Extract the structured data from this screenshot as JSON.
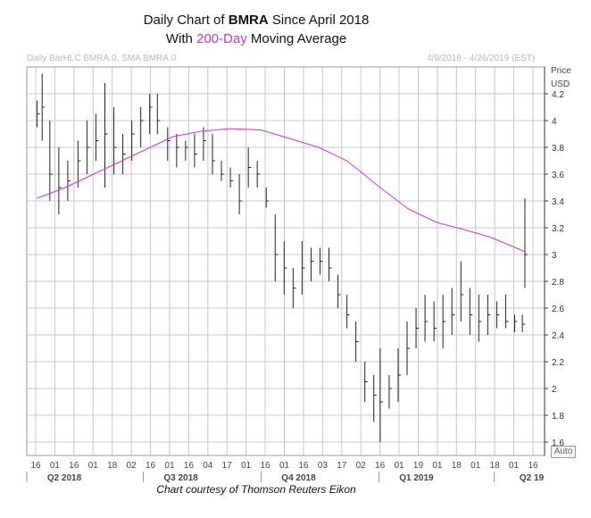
{
  "title": {
    "line1_prefix": "Daily Chart of ",
    "ticker": "BMRA",
    "line1_suffix": " Since April 2018",
    "line2_prefix": "With ",
    "line2_highlight": "200-Day",
    "line2_suffix": " Moving Average"
  },
  "header": {
    "left": "Daily BarHLC BMRA.0, SMA BMRA.0",
    "right": "4/9/2018 - 4/26/2019 (EST)"
  },
  "axis": {
    "price_label": "Price",
    "currency_label": "USD"
  },
  "credit": "Chart courtesy of Thomson Reuters Eikon",
  "auto_button": "Auto",
  "colors": {
    "bars": "#222222",
    "sma": "#cc33cc",
    "grid": "#c8c8c8"
  },
  "chart_data": {
    "type": "bar",
    "subtype": "HLC daily bars with 200-day simple moving average",
    "ylim": [
      1.5,
      4.4
    ],
    "grid": true,
    "yticks": [
      1.6,
      1.8,
      2,
      2.2,
      2.4,
      2.6,
      2.8,
      3,
      3.2,
      3.4,
      3.6,
      3.8,
      4,
      4.2
    ],
    "xticks": [
      "16",
      "01",
      "16",
      "01",
      "18",
      "02",
      "16",
      "01",
      "16",
      "04",
      "17",
      "01",
      "16",
      "01",
      "16",
      "03",
      "17",
      "02",
      "16",
      "01",
      "19",
      "01",
      "18",
      "01",
      "18",
      "01",
      "16"
    ],
    "quarters": [
      "Q2 2018",
      "Q3 2018",
      "Q4 2018",
      "Q1 2019",
      "Q2 19"
    ],
    "series": [
      {
        "kind": "sma",
        "points": [
          [
            "2018-04-09",
            3.42
          ],
          [
            "2018-05-01",
            3.5
          ],
          [
            "2018-06-01",
            3.64
          ],
          [
            "2018-07-02",
            3.78
          ],
          [
            "2018-07-24",
            3.88
          ],
          [
            "2018-08-15",
            3.92
          ],
          [
            "2018-09-07",
            3.94
          ],
          [
            "2018-10-01",
            3.93
          ],
          [
            "2018-10-22",
            3.87
          ],
          [
            "2018-11-15",
            3.8
          ],
          [
            "2018-12-07",
            3.7
          ],
          [
            "2019-01-02",
            3.5
          ],
          [
            "2019-01-24",
            3.34
          ],
          [
            "2019-02-15",
            3.24
          ],
          [
            "2019-03-07",
            3.19
          ],
          [
            "2019-03-29",
            3.13
          ],
          [
            "2019-04-18",
            3.05
          ],
          [
            "2019-04-25",
            3.02
          ]
        ]
      },
      {
        "kind": "hlc",
        "points": [
          [
            "2018-04-09",
            4.15,
            3.95,
            4.05
          ],
          [
            "2018-04-13",
            4.35,
            3.85,
            4.1
          ],
          [
            "2018-04-19",
            4.0,
            3.4,
            3.6
          ],
          [
            "2018-04-26",
            3.8,
            3.3,
            3.5
          ],
          [
            "2018-05-03",
            3.7,
            3.4,
            3.55
          ],
          [
            "2018-05-11",
            3.85,
            3.5,
            3.7
          ],
          [
            "2018-05-18",
            4.0,
            3.6,
            3.8
          ],
          [
            "2018-05-25",
            4.05,
            3.7,
            3.85
          ],
          [
            "2018-06-01",
            4.28,
            3.5,
            3.9
          ],
          [
            "2018-06-08",
            4.1,
            3.6,
            3.8
          ],
          [
            "2018-06-15",
            3.9,
            3.6,
            3.75
          ],
          [
            "2018-06-22",
            4.0,
            3.7,
            3.9
          ],
          [
            "2018-06-29",
            4.1,
            3.8,
            4.0
          ],
          [
            "2018-07-06",
            4.2,
            3.9,
            4.1
          ],
          [
            "2018-07-12",
            4.2,
            3.9,
            4.0
          ],
          [
            "2018-07-20",
            3.95,
            3.7,
            3.85
          ],
          [
            "2018-07-27",
            3.9,
            3.65,
            3.8
          ],
          [
            "2018-08-03",
            3.85,
            3.7,
            3.8
          ],
          [
            "2018-08-10",
            3.9,
            3.65,
            3.75
          ],
          [
            "2018-08-17",
            3.95,
            3.7,
            3.85
          ],
          [
            "2018-08-24",
            3.9,
            3.6,
            3.7
          ],
          [
            "2018-08-31",
            3.7,
            3.55,
            3.6
          ],
          [
            "2018-09-07",
            3.65,
            3.5,
            3.55
          ],
          [
            "2018-09-14",
            3.6,
            3.3,
            3.4
          ],
          [
            "2018-09-21",
            3.8,
            3.5,
            3.65
          ],
          [
            "2018-09-28",
            3.7,
            3.5,
            3.6
          ],
          [
            "2018-10-05",
            3.5,
            3.35,
            3.4
          ],
          [
            "2018-10-12",
            3.3,
            2.8,
            3.0
          ],
          [
            "2018-10-19",
            3.1,
            2.7,
            2.9
          ],
          [
            "2018-10-26",
            2.9,
            2.6,
            2.75
          ],
          [
            "2018-11-02",
            3.1,
            2.7,
            2.9
          ],
          [
            "2018-11-09",
            3.05,
            2.8,
            2.95
          ],
          [
            "2018-11-16",
            3.05,
            2.85,
            2.95
          ],
          [
            "2018-11-23",
            3.05,
            2.8,
            2.9
          ],
          [
            "2018-11-30",
            2.85,
            2.6,
            2.7
          ],
          [
            "2018-12-07",
            2.7,
            2.45,
            2.55
          ],
          [
            "2018-12-14",
            2.5,
            2.2,
            2.35
          ],
          [
            "2018-12-21",
            2.2,
            1.9,
            2.05
          ],
          [
            "2018-12-28",
            2.1,
            1.75,
            1.95
          ],
          [
            "2019-01-02",
            2.3,
            1.6,
            1.9
          ],
          [
            "2019-01-09",
            2.1,
            1.85,
            2.0
          ],
          [
            "2019-01-16",
            2.3,
            1.9,
            2.1
          ],
          [
            "2019-01-23",
            2.5,
            2.1,
            2.3
          ],
          [
            "2019-01-30",
            2.6,
            2.3,
            2.45
          ],
          [
            "2019-02-06",
            2.7,
            2.35,
            2.5
          ],
          [
            "2019-02-13",
            2.65,
            2.35,
            2.45
          ],
          [
            "2019-02-20",
            2.7,
            2.3,
            2.5
          ],
          [
            "2019-02-27",
            2.75,
            2.4,
            2.55
          ],
          [
            "2019-03-06",
            2.95,
            2.5,
            2.7
          ],
          [
            "2019-03-13",
            2.75,
            2.4,
            2.55
          ],
          [
            "2019-03-20",
            2.7,
            2.35,
            2.5
          ],
          [
            "2019-03-27",
            2.7,
            2.4,
            2.55
          ],
          [
            "2019-04-03",
            2.65,
            2.45,
            2.55
          ],
          [
            "2019-04-10",
            2.7,
            2.45,
            2.5
          ],
          [
            "2019-04-17",
            2.55,
            2.42,
            2.5
          ],
          [
            "2019-04-23",
            2.55,
            2.42,
            2.48
          ],
          [
            "2019-04-25",
            3.42,
            2.75,
            3.0
          ]
        ]
      }
    ]
  }
}
